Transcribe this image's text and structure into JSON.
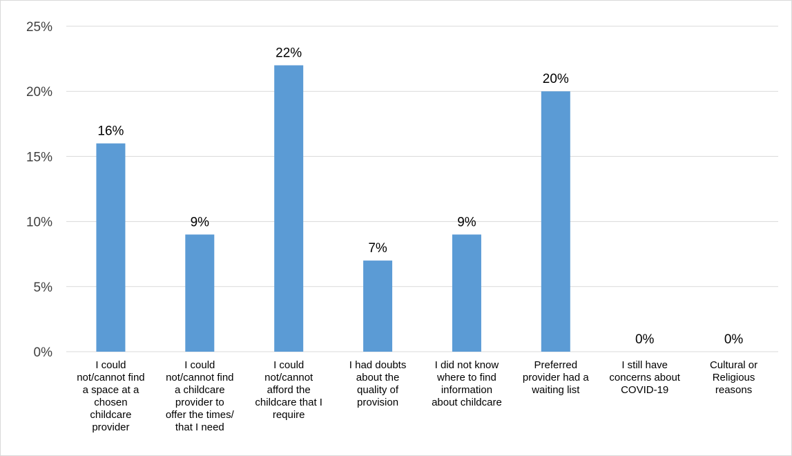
{
  "chart_data": {
    "type": "bar",
    "title": "",
    "xlabel": "",
    "ylabel": "",
    "ylim": [
      0,
      25
    ],
    "yticks": [
      "0%",
      "5%",
      "10%",
      "15%",
      "20%",
      "25%"
    ],
    "ytick_values": [
      0,
      5,
      10,
      15,
      20,
      25
    ],
    "grid": true,
    "legend": "none",
    "bar_color": "#5b9bd5",
    "categories": [
      [
        "I could",
        "not/cannot find",
        "a space at a",
        "chosen",
        "childcare",
        "provider"
      ],
      [
        "I could",
        "not/cannot find",
        "a childcare",
        "provider to",
        "offer the times/",
        "that I need"
      ],
      [
        "I could",
        "not/cannot",
        "afford the",
        "childcare that I",
        "require"
      ],
      [
        "I had doubts",
        "about the",
        "quality of",
        "provision"
      ],
      [
        "I did not know",
        "where to find",
        "information",
        "about childcare"
      ],
      [
        "Preferred",
        "provider had a",
        "waiting list"
      ],
      [
        "I still have",
        "concerns about",
        "COVID-19"
      ],
      [
        "Cultural or",
        "Religious",
        "reasons"
      ]
    ],
    "values": [
      16,
      9,
      22,
      7,
      9,
      20,
      0,
      0
    ],
    "data_labels": [
      "16%",
      "9%",
      "22%",
      "7%",
      "9%",
      "20%",
      "0%",
      "0%"
    ]
  }
}
